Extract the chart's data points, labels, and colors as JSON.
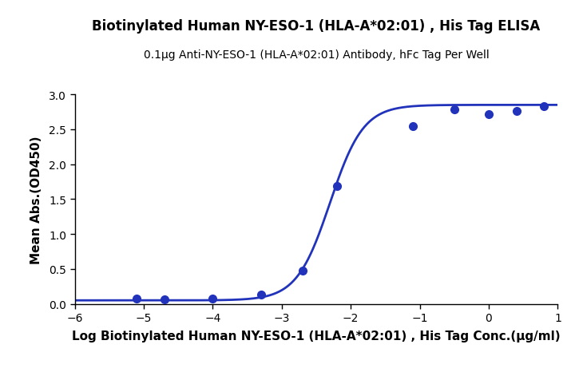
{
  "title": "Biotinylated Human NY-ESO-1 (HLA-A*02:01) , His Tag ELISA",
  "subtitle": "0.1μg Anti-NY-ESO-1 (HLA-A*02:01) Antibody, hFc Tag Per Well",
  "xlabel": "Log Biotinylated Human NY-ESO-1 (HLA-A*02:01) , His Tag Conc.(μg/ml)",
  "ylabel": "Mean Abs.(OD450)",
  "curve_color": "#2233BB",
  "dot_color": "#2233BB",
  "xlim": [
    -6,
    1
  ],
  "ylim": [
    0.0,
    3.0
  ],
  "xticks": [
    -6,
    -5,
    -4,
    -3,
    -2,
    -1,
    0,
    1
  ],
  "yticks": [
    0.0,
    0.5,
    1.0,
    1.5,
    2.0,
    2.5,
    3.0
  ],
  "data_x": [
    -5.1,
    -4.7,
    -4.0,
    -3.3,
    -2.7,
    -2.2,
    -1.1,
    -0.5,
    0.0,
    0.4,
    0.8
  ],
  "data_y": [
    0.07,
    0.06,
    0.08,
    0.13,
    0.47,
    1.69,
    2.55,
    2.78,
    2.72,
    2.76,
    2.83
  ],
  "title_fontsize": 12,
  "subtitle_fontsize": 10,
  "axis_label_fontsize": 11,
  "tick_fontsize": 10,
  "background_color": "#ffffff",
  "dot_size": 7,
  "linewidth": 2.0
}
